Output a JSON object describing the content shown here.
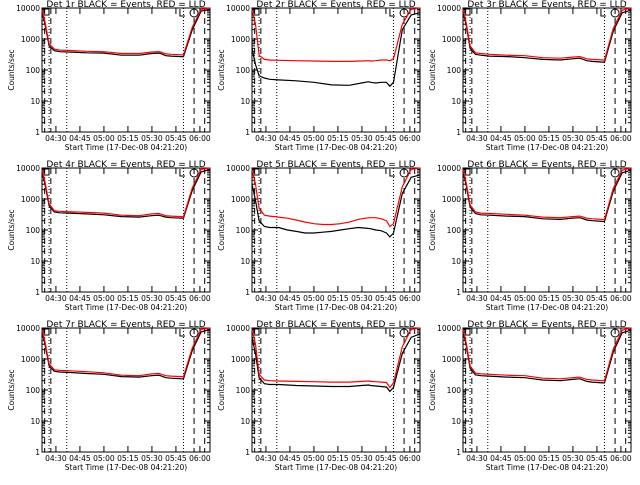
{
  "chart_data": [
    {
      "type": "line",
      "title": "Det 1r BLACK = Events, RED = LLD",
      "xlabel": "Start Time (17-Dec-08 04:21:20)",
      "ylabel": "Counts/sec",
      "x_ticks": [
        "04:30",
        "04:45",
        "05:00",
        "05:15",
        "05:30",
        "05:45",
        "06:00"
      ],
      "y_ticks": [
        "1",
        "10",
        "100",
        "1000",
        "10000"
      ],
      "ylim": [
        1,
        10000
      ],
      "yscale": "log",
      "series": [
        {
          "name": "Events",
          "color": "#000000",
          "x": [
            0,
            2,
            4,
            7,
            10,
            15,
            25,
            35,
            45,
            55,
            62,
            66,
            67,
            70,
            73,
            79,
            80,
            85,
            90,
            95
          ],
          "y": [
            8000,
            2500,
            600,
            420,
            390,
            380,
            360,
            350,
            300,
            300,
            340,
            350,
            340,
            290,
            280,
            270,
            270,
            2000,
            8000,
            9000
          ]
        },
        {
          "name": "LLD",
          "color": "#ff0000",
          "x": [
            0,
            2,
            4,
            7,
            10,
            15,
            25,
            35,
            45,
            55,
            62,
            66,
            67,
            70,
            73,
            79,
            80,
            85,
            90,
            95
          ],
          "y": [
            9000,
            3000,
            700,
            470,
            440,
            430,
            400,
            390,
            340,
            340,
            380,
            390,
            380,
            330,
            320,
            310,
            310,
            2400,
            9000,
            10000
          ]
        }
      ]
    },
    {
      "type": "line",
      "title": "Det 2r BLACK = Events, RED = LLD",
      "xlabel": "Start Time (17-Dec-08 04:21:20)",
      "ylabel": "Counts/sec",
      "x_ticks": [
        "04:30",
        "04:45",
        "05:00",
        "05:15",
        "05:30",
        "05:45",
        "06:00"
      ],
      "y_ticks": [
        "1",
        "10",
        "100",
        "1000",
        "10000"
      ],
      "ylim": [
        1,
        10000
      ],
      "yscale": "log",
      "series": [
        {
          "name": "Events",
          "color": "#000000",
          "x": [
            0,
            2,
            4,
            7,
            10,
            15,
            25,
            35,
            45,
            55,
            62,
            66,
            67,
            70,
            73,
            76,
            78,
            80,
            85,
            90,
            95
          ],
          "y": [
            500,
            150,
            65,
            55,
            50,
            48,
            45,
            40,
            33,
            32,
            38,
            42,
            40,
            38,
            40,
            40,
            30,
            40,
            2000,
            6000,
            7000
          ]
        },
        {
          "name": "LLD",
          "color": "#ff0000",
          "x": [
            0,
            2,
            4,
            7,
            10,
            15,
            25,
            35,
            45,
            55,
            62,
            66,
            67,
            70,
            73,
            76,
            78,
            80,
            85,
            90,
            95
          ],
          "y": [
            9000,
            3000,
            300,
            220,
            210,
            205,
            200,
            195,
            190,
            190,
            195,
            200,
            195,
            200,
            210,
            210,
            200,
            230,
            3000,
            9000,
            10000
          ]
        }
      ]
    },
    {
      "type": "line",
      "title": "Det 3r BLACK = Events, RED = LLD",
      "xlabel": "Start Time (17-Dec-08 04:21:20)",
      "ylabel": "Counts/sec",
      "x_ticks": [
        "04:30",
        "04:45",
        "05:00",
        "05:15",
        "05:30",
        "05:45",
        "06:00"
      ],
      "y_ticks": [
        "1",
        "10",
        "100",
        "1000",
        "10000"
      ],
      "ylim": [
        1,
        10000
      ],
      "yscale": "log",
      "series": [
        {
          "name": "Events",
          "color": "#000000",
          "x": [
            0,
            2,
            4,
            7,
            10,
            15,
            25,
            35,
            45,
            55,
            62,
            66,
            67,
            70,
            73,
            79,
            80,
            85,
            90,
            95
          ],
          "y": [
            8000,
            2500,
            500,
            320,
            300,
            280,
            270,
            250,
            220,
            210,
            230,
            240,
            230,
            200,
            190,
            180,
            180,
            1800,
            7000,
            8500
          ]
        },
        {
          "name": "LLD",
          "color": "#ff0000",
          "x": [
            0,
            2,
            4,
            7,
            10,
            15,
            25,
            35,
            45,
            55,
            62,
            66,
            67,
            70,
            73,
            79,
            80,
            85,
            90,
            95
          ],
          "y": [
            9000,
            3000,
            600,
            360,
            340,
            320,
            300,
            290,
            250,
            240,
            260,
            270,
            260,
            230,
            220,
            210,
            210,
            2200,
            8500,
            10000
          ]
        }
      ]
    },
    {
      "type": "line",
      "title": "Det 4r BLACK = Events, RED = LLD",
      "xlabel": "Start Time (17-Dec-08 04:21:20)",
      "ylabel": "Counts/sec",
      "x_ticks": [
        "04:30",
        "04:45",
        "05:00",
        "05:15",
        "05:30",
        "05:45",
        "06:00"
      ],
      "y_ticks": [
        "1",
        "10",
        "100",
        "1000",
        "10000"
      ],
      "ylim": [
        1,
        10000
      ],
      "yscale": "log",
      "series": [
        {
          "name": "Events",
          "color": "#000000",
          "x": [
            0,
            2,
            4,
            7,
            10,
            15,
            25,
            35,
            45,
            55,
            62,
            66,
            67,
            70,
            73,
            79,
            80,
            85,
            90,
            95
          ],
          "y": [
            8000,
            2500,
            600,
            380,
            360,
            350,
            330,
            310,
            270,
            260,
            290,
            300,
            290,
            260,
            250,
            240,
            240,
            1900,
            7500,
            9000
          ]
        },
        {
          "name": "LLD",
          "color": "#ff0000",
          "x": [
            0,
            2,
            4,
            7,
            10,
            15,
            25,
            35,
            45,
            55,
            62,
            66,
            67,
            70,
            73,
            79,
            80,
            85,
            90,
            95
          ],
          "y": [
            9000,
            3000,
            700,
            420,
            400,
            390,
            370,
            350,
            300,
            290,
            330,
            340,
            330,
            290,
            280,
            270,
            270,
            2300,
            9000,
            10000
          ]
        }
      ]
    },
    {
      "type": "line",
      "title": "Det 5r BLACK = Events, RED = LLD",
      "xlabel": "Start Time (17-Dec-08 04:21:20)",
      "ylabel": "Counts/sec",
      "x_ticks": [
        "04:30",
        "04:45",
        "05:00",
        "05:15",
        "05:30",
        "05:45",
        "06:00"
      ],
      "y_ticks": [
        "1",
        "10",
        "100",
        "1000",
        "10000"
      ],
      "ylim": [
        1,
        10000
      ],
      "yscale": "log",
      "series": [
        {
          "name": "Events",
          "color": "#000000",
          "x": [
            0,
            2,
            4,
            7,
            10,
            15,
            20,
            25,
            30,
            35,
            40,
            45,
            50,
            55,
            60,
            64,
            67,
            70,
            73,
            76,
            78,
            80,
            85,
            90,
            95
          ],
          "y": [
            3000,
            900,
            200,
            130,
            120,
            120,
            100,
            90,
            80,
            80,
            85,
            90,
            100,
            110,
            120,
            115,
            110,
            100,
            95,
            80,
            60,
            80,
            1500,
            5000,
            6000
          ]
        },
        {
          "name": "LLD",
          "color": "#ff0000",
          "x": [
            0,
            2,
            4,
            7,
            10,
            15,
            20,
            25,
            30,
            35,
            40,
            45,
            50,
            55,
            60,
            64,
            67,
            70,
            73,
            76,
            78,
            80,
            85,
            90,
            95
          ],
          "y": [
            9000,
            3000,
            500,
            300,
            280,
            260,
            240,
            210,
            180,
            160,
            150,
            150,
            160,
            180,
            220,
            240,
            250,
            250,
            230,
            200,
            130,
            160,
            2500,
            9000,
            10000
          ]
        }
      ]
    },
    {
      "type": "line",
      "title": "Det 6r BLACK = Events, RED = LLD",
      "xlabel": "Start Time (17-Dec-08 04:21:20)",
      "ylabel": "Counts/sec",
      "x_ticks": [
        "04:30",
        "04:45",
        "05:00",
        "05:15",
        "05:30",
        "05:45",
        "06:00"
      ],
      "y_ticks": [
        "1",
        "10",
        "100",
        "1000",
        "10000"
      ],
      "ylim": [
        1,
        10000
      ],
      "yscale": "log",
      "series": [
        {
          "name": "Events",
          "color": "#000000",
          "x": [
            0,
            2,
            4,
            7,
            10,
            15,
            25,
            35,
            45,
            55,
            62,
            66,
            67,
            70,
            73,
            79,
            80,
            85,
            90,
            95
          ],
          "y": [
            8000,
            2500,
            550,
            340,
            310,
            300,
            280,
            270,
            230,
            220,
            240,
            250,
            240,
            210,
            200,
            190,
            190,
            1800,
            7000,
            8500
          ]
        },
        {
          "name": "LLD",
          "color": "#ff0000",
          "x": [
            0,
            2,
            4,
            7,
            10,
            15,
            25,
            35,
            45,
            55,
            62,
            66,
            67,
            70,
            73,
            79,
            80,
            85,
            90,
            95
          ],
          "y": [
            9000,
            3000,
            650,
            380,
            350,
            340,
            320,
            300,
            260,
            250,
            270,
            280,
            270,
            240,
            230,
            220,
            220,
            2200,
            8500,
            10000
          ]
        }
      ]
    },
    {
      "type": "line",
      "title": "Det 7r BLACK = Events, RED = LLD",
      "xlabel": "Start Time (17-Dec-08 04:21:20)",
      "ylabel": "Counts/sec",
      "x_ticks": [
        "04:30",
        "04:45",
        "05:00",
        "05:15",
        "05:30",
        "05:45",
        "06:00"
      ],
      "y_ticks": [
        "1",
        "10",
        "100",
        "1000",
        "10000"
      ],
      "ylim": [
        1,
        10000
      ],
      "yscale": "log",
      "series": [
        {
          "name": "Events",
          "color": "#000000",
          "x": [
            0,
            2,
            4,
            7,
            10,
            15,
            25,
            35,
            45,
            55,
            62,
            66,
            67,
            70,
            73,
            79,
            80,
            85,
            90,
            95
          ],
          "y": [
            8000,
            2500,
            600,
            400,
            380,
            370,
            340,
            320,
            270,
            260,
            290,
            300,
            290,
            250,
            240,
            230,
            230,
            1900,
            7500,
            9000
          ]
        },
        {
          "name": "LLD",
          "color": "#ff0000",
          "x": [
            0,
            2,
            4,
            7,
            10,
            15,
            25,
            35,
            45,
            55,
            62,
            66,
            67,
            70,
            73,
            79,
            80,
            85,
            90,
            95
          ],
          "y": [
            9000,
            3000,
            700,
            450,
            430,
            420,
            390,
            360,
            300,
            290,
            330,
            340,
            330,
            290,
            280,
            270,
            270,
            2300,
            9000,
            10000
          ]
        }
      ]
    },
    {
      "type": "line",
      "title": "Det 8r BLACK = Events, RED = LLD",
      "xlabel": "Start Time (17-Dec-08 04:21:20)",
      "ylabel": "Counts/sec",
      "x_ticks": [
        "04:30",
        "04:45",
        "05:00",
        "05:15",
        "05:30",
        "05:45",
        "06:00"
      ],
      "y_ticks": [
        "1",
        "10",
        "100",
        "1000",
        "10000"
      ],
      "ylim": [
        1,
        10000
      ],
      "yscale": "log",
      "series": [
        {
          "name": "Events",
          "color": "#000000",
          "x": [
            0,
            2,
            4,
            7,
            10,
            15,
            25,
            35,
            45,
            55,
            62,
            66,
            67,
            70,
            73,
            76,
            78,
            80,
            85,
            90,
            95
          ],
          "y": [
            5000,
            1500,
            250,
            160,
            150,
            150,
            140,
            135,
            130,
            130,
            140,
            145,
            140,
            135,
            130,
            125,
            90,
            120,
            1500,
            5000,
            6500
          ]
        },
        {
          "name": "LLD",
          "color": "#ff0000",
          "x": [
            0,
            2,
            4,
            7,
            10,
            15,
            25,
            35,
            45,
            55,
            62,
            66,
            67,
            70,
            73,
            76,
            78,
            80,
            85,
            90,
            95
          ],
          "y": [
            9000,
            3000,
            320,
            210,
            200,
            195,
            190,
            185,
            180,
            180,
            190,
            195,
            190,
            185,
            180,
            175,
            120,
            170,
            2500,
            9000,
            10000
          ]
        }
      ]
    },
    {
      "type": "line",
      "title": "Det 9r BLACK = Events, RED = LLD",
      "xlabel": "Start Time (17-Dec-08 04:21:20)",
      "ylabel": "Counts/sec",
      "x_ticks": [
        "04:30",
        "04:45",
        "05:00",
        "05:15",
        "05:30",
        "05:45",
        "06:00"
      ],
      "y_ticks": [
        "1",
        "10",
        "100",
        "1000",
        "10000"
      ],
      "ylim": [
        1,
        10000
      ],
      "yscale": "log",
      "series": [
        {
          "name": "Events",
          "color": "#000000",
          "x": [
            0,
            2,
            4,
            7,
            10,
            15,
            25,
            35,
            45,
            55,
            62,
            66,
            67,
            70,
            73,
            79,
            80,
            85,
            90,
            95
          ],
          "y": [
            8000,
            2500,
            500,
            310,
            290,
            280,
            260,
            250,
            210,
            200,
            220,
            230,
            220,
            190,
            180,
            170,
            170,
            1700,
            7000,
            8500
          ]
        },
        {
          "name": "LLD",
          "color": "#ff0000",
          "x": [
            0,
            2,
            4,
            7,
            10,
            15,
            25,
            35,
            45,
            55,
            62,
            66,
            67,
            70,
            73,
            79,
            80,
            85,
            90,
            95
          ],
          "y": [
            9000,
            3000,
            600,
            350,
            330,
            320,
            300,
            290,
            240,
            230,
            250,
            260,
            250,
            220,
            210,
            200,
            200,
            2100,
            8500,
            10000
          ]
        }
      ]
    }
  ]
}
